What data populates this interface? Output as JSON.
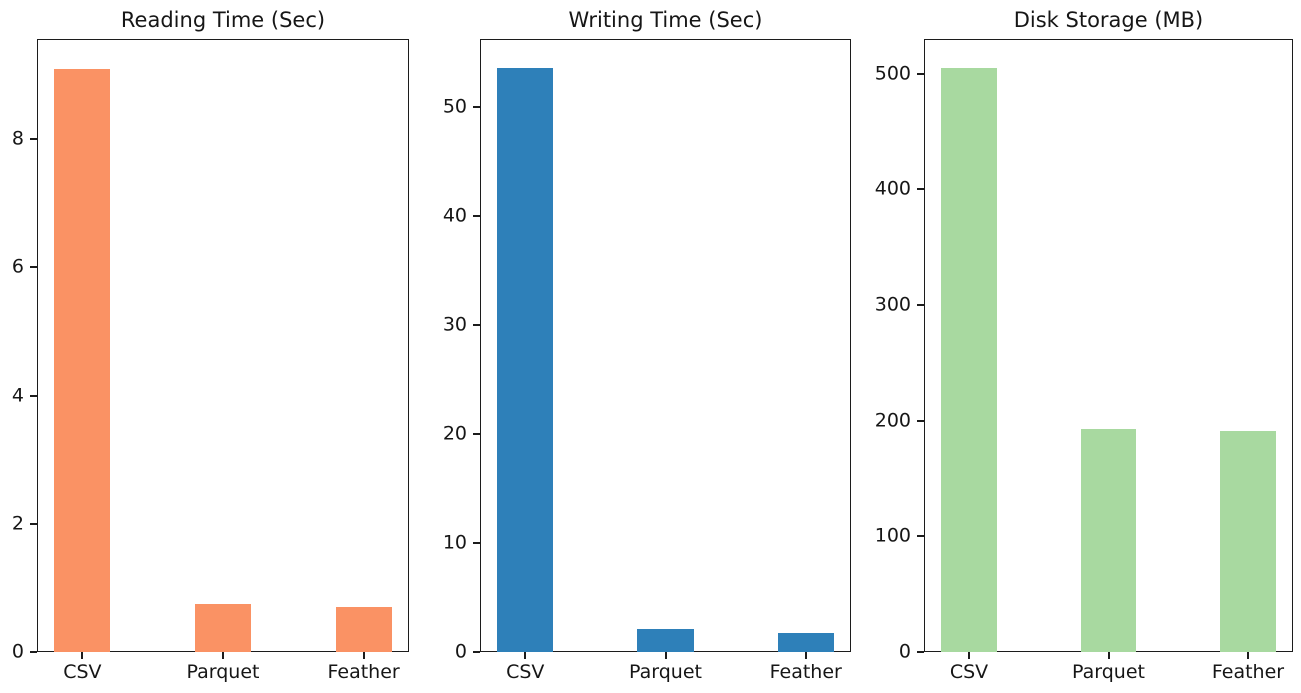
{
  "figure": {
    "background": "#ffffff",
    "axis_color": "#1c1c1c",
    "text_color": "#161616"
  },
  "chart_data": [
    {
      "type": "bar",
      "title": "Reading Time (Sec)",
      "categories": [
        "CSV",
        "Parquet",
        "Feather"
      ],
      "values": [
        9.1,
        0.75,
        0.7
      ],
      "bar_color": "#fa9264",
      "yticks": [
        0,
        2,
        4,
        6,
        8
      ],
      "ylim": [
        0,
        9.56
      ],
      "xlabel": "",
      "ylabel": "",
      "grid": false,
      "legend": "none"
    },
    {
      "type": "bar",
      "title": "Writing Time (Sec)",
      "categories": [
        "CSV",
        "Parquet",
        "Feather"
      ],
      "values": [
        53.5,
        2.1,
        1.7
      ],
      "bar_color": "#2e80b9",
      "yticks": [
        0,
        10,
        20,
        30,
        40,
        50
      ],
      "ylim": [
        0,
        56.2
      ],
      "xlabel": "",
      "ylabel": "",
      "grid": false,
      "legend": "none"
    },
    {
      "type": "bar",
      "title": "Disk Storage (MB)",
      "categories": [
        "CSV",
        "Parquet",
        "Feather"
      ],
      "values": [
        505,
        193,
        191
      ],
      "bar_color": "#a8d9a0",
      "yticks": [
        0,
        100,
        200,
        300,
        400,
        500
      ],
      "ylim": [
        0,
        530
      ],
      "xlabel": "",
      "ylabel": "",
      "grid": false,
      "legend": "none"
    }
  ]
}
